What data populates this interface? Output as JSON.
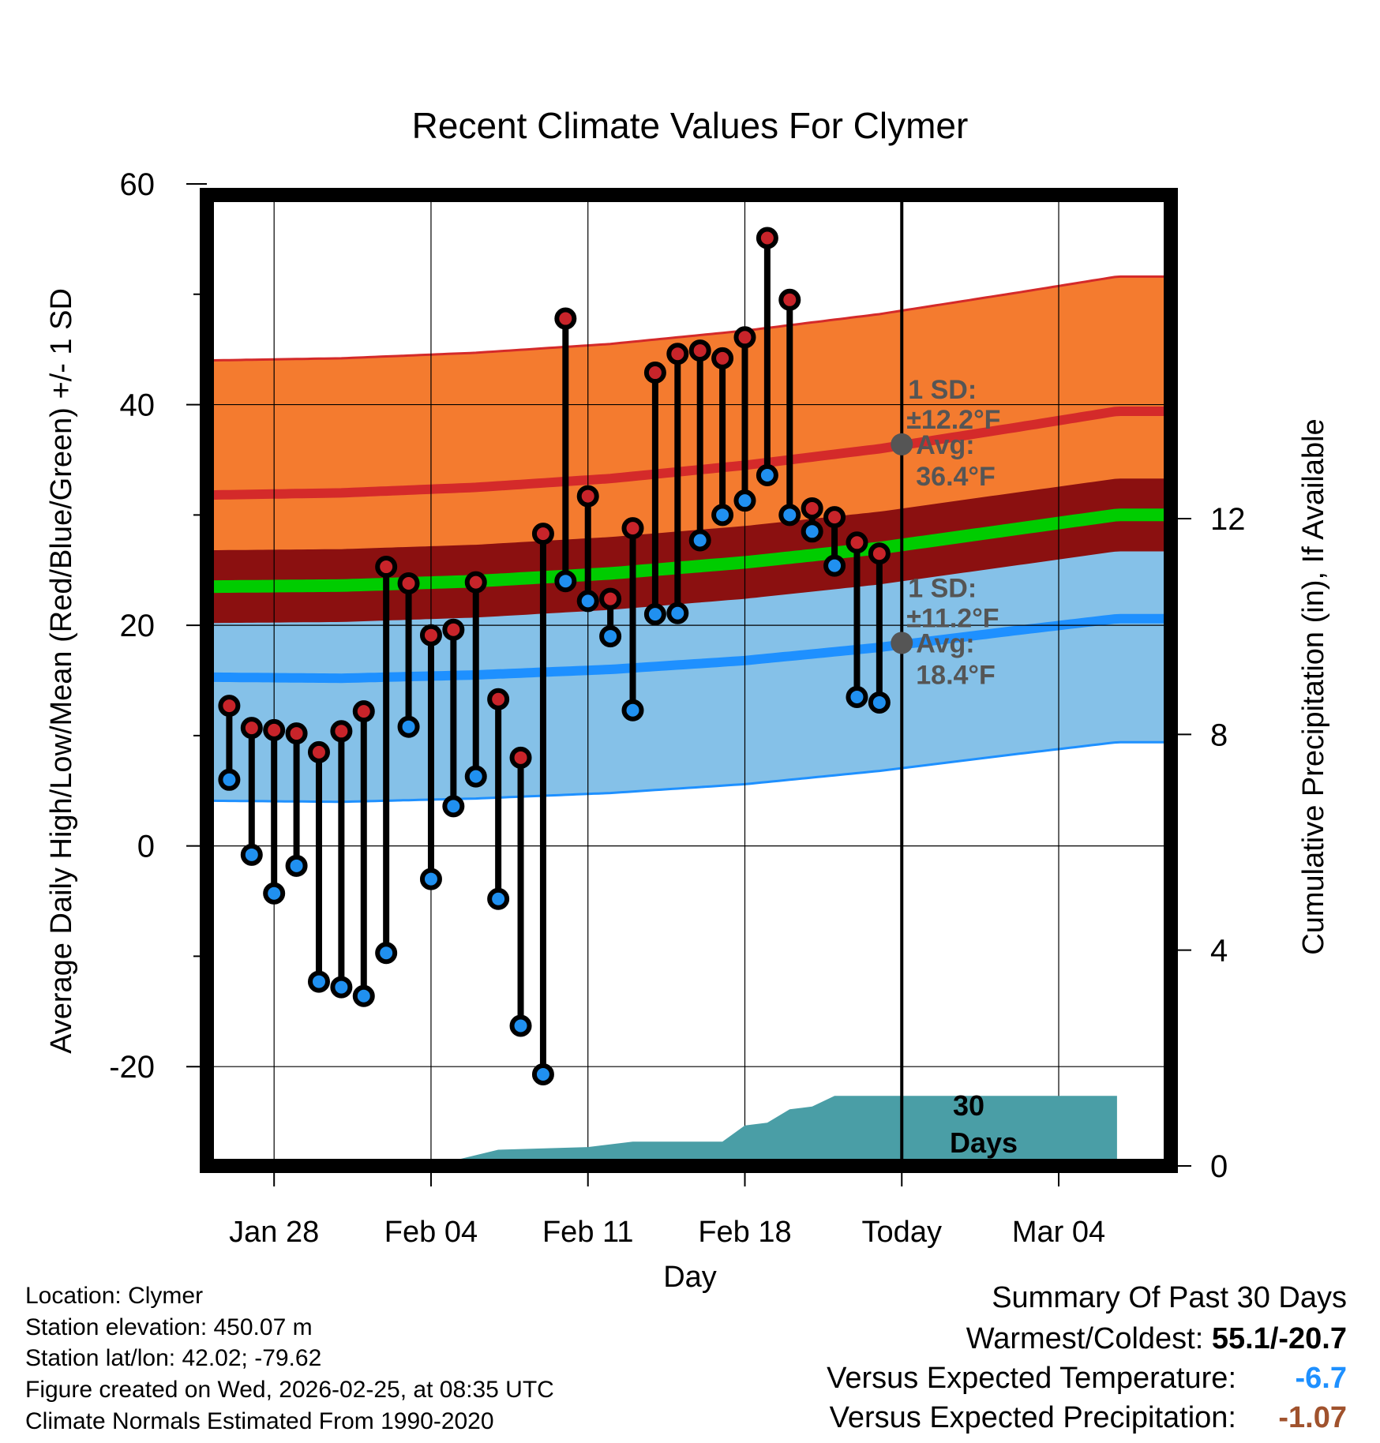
{
  "chart_data": {
    "type": "dot-range",
    "title": "Recent Climate Values For Clymer",
    "xlabel": "Day",
    "ylabel_left": "Average Daily High/Low/Mean (Red/Blue/Green) +/- 1 SD",
    "ylabel_right": "Cumulative Precipitation (in), If Available",
    "ylim": [
      -29,
      59
    ],
    "y2lim": [
      0,
      18
    ],
    "yticks": [
      -20,
      0,
      20,
      40,
      60
    ],
    "y2ticks": [
      0,
      4,
      8,
      12
    ],
    "x_range_days": [
      -31,
      12
    ],
    "xticks": [
      {
        "day": -28,
        "label": "Jan 28"
      },
      {
        "day": -21,
        "label": "Feb 04"
      },
      {
        "day": -14,
        "label": "Feb 11"
      },
      {
        "day": -7,
        "label": "Feb 18"
      },
      {
        "day": 0,
        "label": "Today"
      },
      {
        "day": 7,
        "label": "Mar 04"
      }
    ],
    "today_day": 0,
    "daily": [
      {
        "day": -30,
        "high": 12.7,
        "low": 6.0
      },
      {
        "day": -29,
        "high": 10.7,
        "low": -0.8
      },
      {
        "day": -28,
        "high": 10.5,
        "low": -4.3
      },
      {
        "day": -27,
        "high": 10.2,
        "low": -1.8
      },
      {
        "day": -26,
        "high": 8.5,
        "low": -12.3
      },
      {
        "day": -25,
        "high": 10.4,
        "low": -12.8
      },
      {
        "day": -24,
        "high": 12.2,
        "low": -13.6
      },
      {
        "day": -23,
        "high": 25.3,
        "low": -9.7
      },
      {
        "day": -22,
        "high": 23.8,
        "low": 10.8
      },
      {
        "day": -21,
        "high": 19.1,
        "low": -3.0
      },
      {
        "day": -20,
        "high": 19.6,
        "low": 3.6
      },
      {
        "day": -19,
        "high": 23.9,
        "low": 6.3
      },
      {
        "day": -18,
        "high": 13.3,
        "low": -4.8
      },
      {
        "day": -17,
        "high": 8.0,
        "low": -16.3
      },
      {
        "day": -16,
        "high": 28.3,
        "low": -20.7
      },
      {
        "day": -15,
        "high": 47.8,
        "low": 24.0
      },
      {
        "day": -14,
        "high": 31.7,
        "low": 22.2
      },
      {
        "day": -13,
        "high": 22.4,
        "low": 19.0
      },
      {
        "day": -12,
        "high": 28.8,
        "low": 12.3
      },
      {
        "day": -11,
        "high": 42.9,
        "low": 21.0
      },
      {
        "day": -10,
        "high": 44.6,
        "low": 21.1
      },
      {
        "day": -9,
        "high": 44.9,
        "low": 27.7
      },
      {
        "day": -8,
        "high": 44.2,
        "low": 30.0
      },
      {
        "day": -7,
        "high": 46.1,
        "low": 31.3
      },
      {
        "day": -6,
        "high": 55.1,
        "low": 33.6
      },
      {
        "day": -5,
        "high": 49.5,
        "low": 30.0
      },
      {
        "day": -4,
        "high": 30.6,
        "low": 28.5
      },
      {
        "day": -3,
        "high": 29.8,
        "low": 25.4
      },
      {
        "day": -2,
        "high": 27.5,
        "low": 13.5
      },
      {
        "day": -1,
        "high": 26.5,
        "low": 13.0
      }
    ],
    "normals": {
      "days": [
        -31,
        -25,
        -19,
        -13,
        -7,
        -1,
        5,
        9.6
      ],
      "high_avg": [
        31.8,
        32.0,
        32.5,
        33.3,
        34.5,
        36.0,
        37.9,
        39.4
      ],
      "high_sd": 12.2,
      "low_avg": [
        15.3,
        15.2,
        15.5,
        16.0,
        16.8,
        18.0,
        19.5,
        20.6
      ],
      "low_sd": 11.2,
      "mean_avg": [
        23.5,
        23.6,
        24.0,
        24.7,
        25.7,
        27.0,
        28.7,
        30.0
      ],
      "mean_sd": 1.5
    },
    "today_annotations": {
      "high": {
        "sd_label": "1 SD:",
        "sd_value": "±12.2°F",
        "avg_label": "Avg:",
        "avg_value": "36.4°F",
        "value": 36.4
      },
      "low": {
        "sd_label": "1 SD:",
        "sd_value": "±11.2°F",
        "avg_label": "Avg:",
        "avg_value": "18.4°F",
        "value": 18.4
      }
    },
    "precip_cumulative": {
      "days": [
        -31,
        -20,
        -18,
        -14,
        -12,
        -8,
        -7,
        -6,
        -5,
        -4,
        -3,
        -2,
        0,
        9.6
      ],
      "values": [
        0,
        0.1,
        0.3,
        0.35,
        0.45,
        0.45,
        0.75,
        0.8,
        1.05,
        1.1,
        1.3,
        1.3,
        1.3,
        1.3
      ]
    },
    "days_label": "30 Days",
    "colors": {
      "high_band": "#f47b2f",
      "high_line": "#d42a2a",
      "low_band": "#85c1e8",
      "low_line": "#1e90ff",
      "mean_band": "#8b1010",
      "mean_line": "#00cc00",
      "precip": "#4a9ea6",
      "dot_high": "#c8242a",
      "dot_low": "#2090f0",
      "annotation": "#555555"
    }
  },
  "footer": {
    "location": "Location: Clymer",
    "elevation": "Station elevation: 450.07 m",
    "latlon": "Station lat/lon: 42.02; -79.62",
    "created": "Figure created on Wed, 2026-02-25, at 08:35 UTC",
    "normals": "Climate Normals Estimated From 1990-2020"
  },
  "summary": {
    "title": "Summary Of Past 30 Days",
    "warmest_label": "Warmest/Coldest:",
    "warmest_value": "55.1/-20.7",
    "temp_label": "Versus Expected Temperature:",
    "temp_value": "-6.7",
    "temp_color": "#1e90ff",
    "precip_label": "Versus Expected Precipitation:",
    "precip_value": "-1.07",
    "precip_color": "#a0522d"
  }
}
